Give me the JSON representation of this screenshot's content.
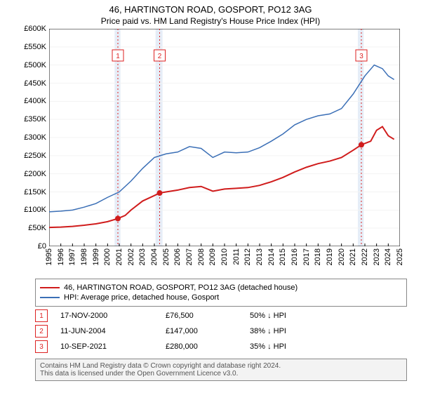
{
  "title": "46, HARTINGTON ROAD, GOSPORT, PO12 3AG",
  "subtitle": "Price paid vs. HM Land Registry's House Price Index (HPI)",
  "chart": {
    "type": "line",
    "background_color": "#ffffff",
    "grid_color": "#f3f3f3",
    "band_color": "#e6edf7",
    "marker_line_color": "#d22",
    "x": {
      "min": 1995,
      "max": 2025,
      "tick_step": 1,
      "label_fontsize": 11,
      "rotation": -90
    },
    "y": {
      "min": 0,
      "max": 600000,
      "tick_step": 50000,
      "prefix": "£",
      "suffix": "K",
      "divide": 1000,
      "label_fontsize": 11
    },
    "bands": [
      {
        "from": 2000.6,
        "to": 2001.1
      },
      {
        "from": 2004.1,
        "to": 2004.7
      },
      {
        "from": 2021.4,
        "to": 2021.9
      }
    ],
    "markers": [
      {
        "n": "1",
        "x": 2000.88
      },
      {
        "n": "2",
        "x": 2004.45
      },
      {
        "n": "3",
        "x": 2021.7
      }
    ],
    "series": [
      {
        "name": "price_paid",
        "label": "46, HARTINGTON ROAD, GOSPORT, PO12 3AG (detached house)",
        "color": "#d01c1c",
        "width": 2,
        "points": [
          [
            1995.0,
            52000
          ],
          [
            1996.0,
            53000
          ],
          [
            1997.0,
            55000
          ],
          [
            1998.0,
            58000
          ],
          [
            1999.0,
            62000
          ],
          [
            2000.0,
            68000
          ],
          [
            2000.88,
            76500
          ],
          [
            2001.5,
            85000
          ],
          [
            2002.0,
            100000
          ],
          [
            2003.0,
            125000
          ],
          [
            2004.0,
            140000
          ],
          [
            2004.45,
            147000
          ],
          [
            2005.0,
            150000
          ],
          [
            2006.0,
            155000
          ],
          [
            2007.0,
            162000
          ],
          [
            2008.0,
            165000
          ],
          [
            2009.0,
            152000
          ],
          [
            2010.0,
            158000
          ],
          [
            2011.0,
            160000
          ],
          [
            2012.0,
            162000
          ],
          [
            2013.0,
            168000
          ],
          [
            2014.0,
            178000
          ],
          [
            2015.0,
            190000
          ],
          [
            2016.0,
            205000
          ],
          [
            2017.0,
            218000
          ],
          [
            2018.0,
            228000
          ],
          [
            2019.0,
            235000
          ],
          [
            2020.0,
            245000
          ],
          [
            2021.0,
            265000
          ],
          [
            2021.7,
            280000
          ],
          [
            2022.5,
            290000
          ],
          [
            2023.0,
            320000
          ],
          [
            2023.5,
            330000
          ],
          [
            2024.0,
            305000
          ],
          [
            2024.5,
            295000
          ]
        ],
        "sale_markers": [
          {
            "x": 2000.88,
            "y": 76500
          },
          {
            "x": 2004.45,
            "y": 147000
          },
          {
            "x": 2021.7,
            "y": 280000
          }
        ]
      },
      {
        "name": "hpi",
        "label": "HPI: Average price, detached house, Gosport",
        "color": "#3b6fb6",
        "width": 1.5,
        "points": [
          [
            1995.0,
            95000
          ],
          [
            1996.0,
            97000
          ],
          [
            1997.0,
            100000
          ],
          [
            1998.0,
            108000
          ],
          [
            1999.0,
            118000
          ],
          [
            2000.0,
            135000
          ],
          [
            2001.0,
            150000
          ],
          [
            2002.0,
            180000
          ],
          [
            2003.0,
            215000
          ],
          [
            2004.0,
            245000
          ],
          [
            2005.0,
            255000
          ],
          [
            2006.0,
            260000
          ],
          [
            2007.0,
            275000
          ],
          [
            2008.0,
            270000
          ],
          [
            2009.0,
            245000
          ],
          [
            2010.0,
            260000
          ],
          [
            2011.0,
            258000
          ],
          [
            2012.0,
            260000
          ],
          [
            2013.0,
            272000
          ],
          [
            2014.0,
            290000
          ],
          [
            2015.0,
            310000
          ],
          [
            2016.0,
            335000
          ],
          [
            2017.0,
            350000
          ],
          [
            2018.0,
            360000
          ],
          [
            2019.0,
            365000
          ],
          [
            2020.0,
            380000
          ],
          [
            2021.0,
            420000
          ],
          [
            2022.0,
            470000
          ],
          [
            2022.8,
            500000
          ],
          [
            2023.5,
            490000
          ],
          [
            2024.0,
            470000
          ],
          [
            2024.5,
            460000
          ]
        ]
      }
    ]
  },
  "legend": {
    "items": [
      {
        "color": "#d01c1c",
        "label": "46, HARTINGTON ROAD, GOSPORT, PO12 3AG (detached house)"
      },
      {
        "color": "#3b6fb6",
        "label": "HPI: Average price, detached house, Gosport"
      }
    ]
  },
  "markers_table": {
    "rows": [
      {
        "n": "1",
        "date": "17-NOV-2000",
        "price": "£76,500",
        "pct": "50% ↓ HPI"
      },
      {
        "n": "2",
        "date": "11-JUN-2004",
        "price": "£147,000",
        "pct": "38% ↓ HPI"
      },
      {
        "n": "3",
        "date": "10-SEP-2021",
        "price": "£280,000",
        "pct": "35% ↓ HPI"
      }
    ]
  },
  "footer": {
    "line1": "Contains HM Land Registry data © Crown copyright and database right 2024.",
    "line2": "This data is licensed under the Open Government Licence v3.0."
  }
}
